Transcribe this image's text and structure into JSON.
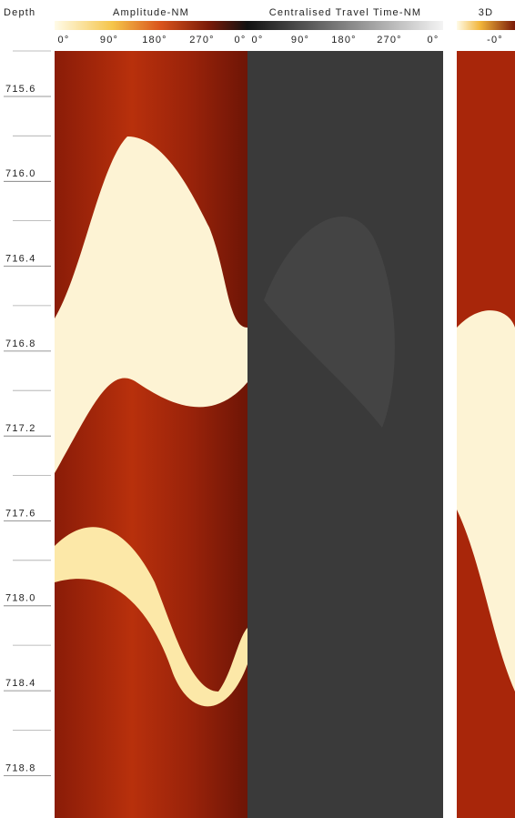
{
  "header": {
    "depth_label": "Depth"
  },
  "tracks": [
    {
      "title": "Amplitude-NM",
      "ticks": [
        "0°",
        "90°",
        "180°",
        "270°",
        "0°"
      ]
    },
    {
      "title": "Centralised Travel Time-NM",
      "ticks": [
        "0°",
        "90°",
        "180°",
        "270°",
        "0°"
      ]
    },
    {
      "title": "3D",
      "ticks": [
        "-0°"
      ]
    }
  ],
  "depths": [
    "715.6",
    "716.0",
    "716.4",
    "716.8",
    "717.2",
    "717.6",
    "718.0",
    "718.4",
    "718.8"
  ]
}
